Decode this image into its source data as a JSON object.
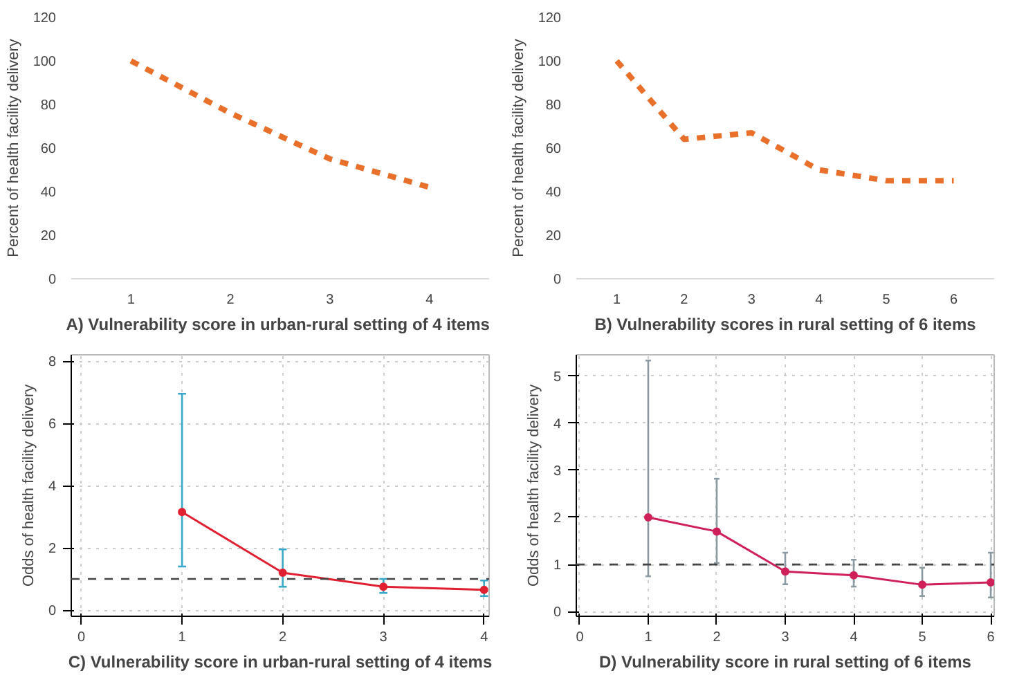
{
  "chart_data": [
    {
      "type": "line",
      "xlabel": "A) Vulnerability score in urban-rural setting  of 4 items",
      "ylabel": "Percent of health facility delivery",
      "categories": [
        "1",
        "2",
        "3",
        "4"
      ],
      "series": [
        {
          "color": "#e8702a",
          "values": [
            100,
            76,
            55,
            42
          ]
        }
      ],
      "ylim": [
        0,
        120
      ],
      "yticks": [
        0,
        20,
        40,
        60,
        80,
        100,
        120
      ],
      "grid": false,
      "line_style": "dashed",
      "marker": "none"
    },
    {
      "type": "line",
      "xlabel": "B) Vulnerability scores in rural setting of 6 items",
      "ylabel": "Percent of health facility delivery",
      "categories": [
        "1",
        "2",
        "3",
        "4",
        "5",
        "6"
      ],
      "series": [
        {
          "color": "#e8702a",
          "values": [
            100,
            64,
            67,
            50,
            45,
            45
          ]
        }
      ],
      "ylim": [
        0,
        120
      ],
      "yticks": [
        0,
        20,
        40,
        60,
        80,
        100,
        120
      ],
      "grid": false,
      "line_style": "dashed",
      "marker": "none"
    },
    {
      "type": "line",
      "xlabel": "C) Vulnerability score in urban-rural setting of 4 items",
      "ylabel": "Odds of health facility delivery",
      "x": [
        1,
        2,
        3,
        4
      ],
      "series": [
        {
          "color": "#e02030",
          "values": [
            3.15,
            1.2,
            0.75,
            0.65
          ],
          "errors": [
            [
              1.4,
              6.95
            ],
            [
              0.75,
              1.95
            ],
            [
              0.55,
              1.0
            ],
            [
              0.45,
              0.95
            ]
          ]
        }
      ],
      "xlim": [
        -0.1,
        4.05
      ],
      "xticks": [
        0,
        1,
        2,
        3,
        4
      ],
      "ylim": [
        -0.2,
        8.2
      ],
      "yticks": [
        0,
        2,
        4,
        6,
        8
      ],
      "grid": true,
      "line_style": "solid",
      "marker": "circle",
      "ref_lines": [
        {
          "axis": "y",
          "value": 1,
          "line_style": "dashed",
          "color": "#444444"
        }
      ]
    },
    {
      "type": "line",
      "xlabel": "D) Vulnerability score in rural setting of 6 items",
      "ylabel": "Odds of health facility delivery",
      "x": [
        1,
        2,
        3,
        4,
        5,
        6
      ],
      "series": [
        {
          "color": "#d0205a",
          "values": [
            2.0,
            1.7,
            0.85,
            0.77,
            0.57,
            0.62
          ],
          "errors": [
            [
              0.75,
              5.33
            ],
            [
              1.03,
              2.82
            ],
            [
              0.58,
              1.25
            ],
            [
              0.53,
              1.1
            ],
            [
              0.33,
              0.93
            ],
            [
              0.3,
              1.25
            ]
          ]
        }
      ],
      "xlim": [
        -0.05,
        6.05
      ],
      "xticks": [
        0,
        1,
        2,
        3,
        4,
        5,
        6
      ],
      "ylim": [
        -0.1,
        5.45
      ],
      "yticks": [
        0,
        1,
        2,
        3,
        4,
        5
      ],
      "grid": true,
      "line_style": "solid",
      "marker": "circle",
      "ref_lines": [
        {
          "axis": "y",
          "value": 1,
          "line_style": "dashed",
          "color": "#444444"
        }
      ]
    }
  ]
}
